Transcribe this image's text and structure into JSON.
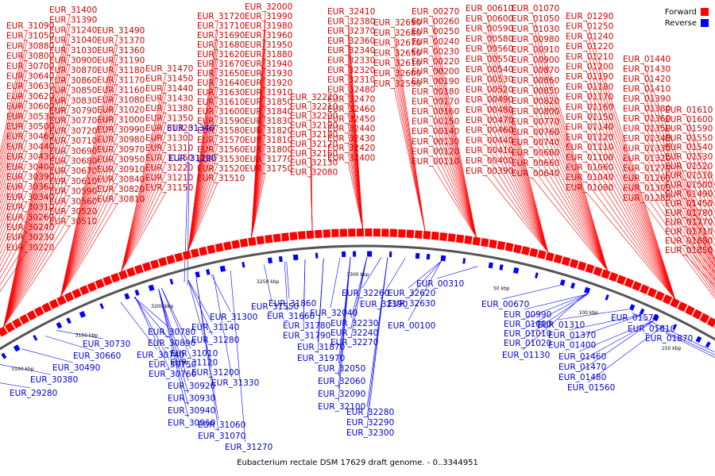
{
  "caption": "Eubacterium rectale DSM 17629 draft genome. - 0..3344951",
  "legend": [
    {
      "label": "Forward",
      "color": "#ff0000"
    },
    {
      "label": "Reverse",
      "color": "#0000ff"
    }
  ],
  "colors": {
    "forward": "#ff0000",
    "reverse": "#0000ff",
    "forward_label": "#cc0000",
    "reverse_label": "#0000cc"
  },
  "ticks": [
    "3050 kbp",
    "3100 kbp",
    "3150 kbp",
    "3200 kbp",
    "3250 kbp",
    "3300 kbp",
    "50 kbp",
    "100 kbp",
    "150 kbp",
    "200 kbp"
  ],
  "forward_genes": [
    "EUR_31090",
    "EUR_31050",
    "EUR_30880",
    "EUR_30800",
    "EUR_30700",
    "EUR_30640",
    "EUR_30630",
    "EUR_30620",
    "EUR_30600",
    "EUR_30530",
    "EUR_30500",
    "EUR_30460",
    "EUR_30440",
    "EUR_30430",
    "EUR_30400",
    "EUR_30390",
    "EUR_30360",
    "EUR_30340",
    "EUR_30310",
    "EUR_30260",
    "EUR_30240",
    "EUR_30230",
    "EUR_30220",
    "EUR_31400",
    "EUR_31390",
    "EUR_31240",
    "EUR_31040",
    "EUR_31030",
    "EUR_30900",
    "EUR_30870",
    "EUR_30860",
    "EUR_30850",
    "EUR_30830",
    "EUR_30790",
    "EUR_30770",
    "EUR_30720",
    "EUR_30710",
    "EUR_30690",
    "EUR_30680",
    "EUR_30670",
    "EUR_30610",
    "EUR_30590",
    "EUR_30560",
    "EUR_30520",
    "EUR_30510",
    "EUR_31490",
    "EUR_31370",
    "EUR_31360",
    "EUR_31190",
    "EUR_31180",
    "EUR_31170",
    "EUR_31160",
    "EUR_31080",
    "EUR_31020",
    "EUR_31000",
    "EUR_30990",
    "EUR_30980",
    "EUR_30970",
    "EUR_30950",
    "EUR_30910",
    "EUR_30840",
    "EUR_30820",
    "EUR_30810",
    "EUR_31470",
    "EUR_31450",
    "EUR_31440",
    "EUR_31430",
    "EUR_31380",
    "EUR_31350",
    "EUR_31320",
    "EUR_31300",
    "EUR_31310",
    "EUR_31250",
    "EUR_31220",
    "EUR_31210",
    "EUR_31150",
    "EUR_31720",
    "EUR_31710",
    "EUR_31690",
    "EUR_31680",
    "EUR_31620",
    "EUR_31670",
    "EUR_31650",
    "EUR_31640",
    "EUR_31630",
    "EUR_31610",
    "EUR_31600",
    "EUR_31590",
    "EUR_31580",
    "EUR_31570",
    "EUR_31560",
    "EUR_31530",
    "EUR_31520",
    "EUR_31510",
    "EUR_32000",
    "EUR_31990",
    "EUR_31980",
    "EUR_31960",
    "EUR_31950",
    "EUR_31880",
    "EUR_31940",
    "EUR_31930",
    "EUR_31920",
    "EUR_31910",
    "EUR_31850",
    "EUR_31840",
    "EUR_31830",
    "EUR_31820",
    "EUR_31810",
    "EUR_31800",
    "EUR_31770",
    "EUR_31750",
    "EUR_32220",
    "EUR_32210",
    "EUR_32200",
    "EUR_32190",
    "EUR_32180",
    "EUR_32170",
    "EUR_32160",
    "EUR_32130",
    "EUR_32080",
    "EUR_32410",
    "EUR_32380",
    "EUR_32370",
    "EUR_32360",
    "EUR_32340",
    "EUR_32330",
    "EUR_32320",
    "EUR_32310",
    "EUR_32480",
    "EUR_32470",
    "EUR_32460",
    "EUR_32450",
    "EUR_32440",
    "EUR_32430",
    "EUR_32420",
    "EUR_32400",
    "EUR_32690",
    "EUR_32680",
    "EUR_32670",
    "EUR_32650",
    "EUR_32610",
    "EUR_32600",
    "EUR_32590",
    "EUR_00270",
    "EUR_00260",
    "EUR_00250",
    "EUR_00240",
    "EUR_00230",
    "EUR_00220",
    "EUR_00200",
    "EUR_00190",
    "EUR_00180",
    "EUR_00170",
    "EUR_00160",
    "EUR_00150",
    "EUR_00140",
    "EUR_00130",
    "EUR_00120",
    "EUR_00110",
    "EUR_00610",
    "EUR_00600",
    "EUR_00590",
    "EUR_00580",
    "EUR_00560",
    "EUR_00550",
    "EUR_00540",
    "EUR_00530",
    "EUR_00520",
    "EUR_00490",
    "EUR_00480",
    "EUR_00470",
    "EUR_00460",
    "EUR_00440",
    "EUR_00410",
    "EUR_00400",
    "EUR_00390",
    "EUR_01070",
    "EUR_01050",
    "EUR_01030",
    "EUR_00980",
    "EUR_00910",
    "EUR_00900",
    "EUR_00870",
    "EUR_00860",
    "EUR_00850",
    "EUR_00820",
    "EUR_00800",
    "EUR_00770",
    "EUR_00760",
    "EUR_00740",
    "EUR_00680",
    "EUR_00660",
    "EUR_00640",
    "EUR_01290",
    "EUR_01250",
    "EUR_01240",
    "EUR_01220",
    "EUR_01210",
    "EUR_01200",
    "EUR_01190",
    "EUR_01180",
    "EUR_01170",
    "EUR_01160",
    "EUR_01150",
    "EUR_01140",
    "EUR_01120",
    "EUR_01110",
    "EUR_01100",
    "EUR_01060",
    "EUR_01040",
    "EUR_01080",
    "EUR_01440",
    "EUR_01430",
    "EUR_01420",
    "EUR_01410",
    "EUR_01390",
    "EUR_01380",
    "EUR_01360",
    "EUR_01350",
    "EUR_01340",
    "EUR_01330",
    "EUR_01320",
    "EUR_01270",
    "EUR_01260",
    "EUR_01300",
    "EUR_01280",
    "EUR_01610",
    "EUR_01600",
    "EUR_01590",
    "EUR_01550",
    "EUR_01540",
    "EUR_01530",
    "EUR_01520",
    "EUR_01510",
    "EUR_01500",
    "EUR_01490",
    "EUR_01450",
    "EUR_01780",
    "EUR_01770",
    "EUR_01710",
    "EUR_01680",
    "EUR_01850"
  ],
  "reverse_genes_top": [
    "EUR_31340",
    "EUR_31290"
  ],
  "reverse_genes": [
    "EUR_29280",
    "EUR_30380",
    "EUR_30490",
    "EUR_30660",
    "EUR_30730",
    "EUR_30780",
    "EUR_30740",
    "EUR_30890",
    "EUR_30750",
    "EUR_30760",
    "EUR_31010",
    "EUR_31120",
    "EUR_31140",
    "EUR_31200",
    "EUR_31280",
    "EUR_31300",
    "EUR_31330",
    "EUR_30920",
    "EUR_30930",
    "EUR_30940",
    "EUR_30960",
    "EUR_31060",
    "EUR_31070",
    "EUR_31270",
    "EUR_31550",
    "EUR_31660",
    "EUR_31780",
    "EUR_31790",
    "EUR_31860",
    "EUR_31870",
    "EUR_31970",
    "EUR_32040",
    "EUR_32260",
    "EUR_32390",
    "EUR_32230",
    "EUR_32240",
    "EUR_32270",
    "EUR_32050",
    "EUR_32060",
    "EUR_32090",
    "EUR_32100",
    "EUR_32280",
    "EUR_32290",
    "EUR_32300",
    "EUR_32620",
    "EUR_32630",
    "EUR_00100",
    "EUR_00310",
    "EUR_00670",
    "EUR_00990",
    "EUR_01000",
    "EUR_01010",
    "EUR_01020",
    "EUR_01130",
    "EUR_01310",
    "EUR_01370",
    "EUR_01400",
    "EUR_01460",
    "EUR_01470",
    "EUR_01480",
    "EUR_01560",
    "EUR_01570",
    "EUR_01810",
    "EUR_01870"
  ]
}
